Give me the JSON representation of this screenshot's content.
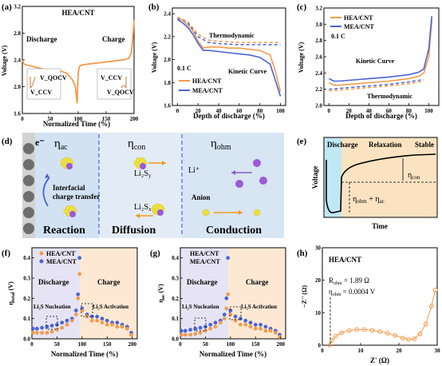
{
  "panels": {
    "a": {
      "letter": "(a)",
      "xlabel": "Normalized Time (%)",
      "ylabel": "Voltage (V)",
      "legend": "HEA/CNT",
      "discharge_label": "Discharge",
      "charge_label": "Charge",
      "inset_left_top": "V_QOCV",
      "inset_left_bottom": "V_CCV",
      "inset_right_top": "V_CCV",
      "inset_right_bottom": "V_QOCV",
      "xticks": [
        "0",
        "50",
        "100",
        "150",
        "200"
      ],
      "yticks": [
        "1.6",
        "2.0",
        "2.4",
        "2.8",
        "3.2"
      ]
    },
    "b": {
      "letter": "(b)",
      "xlabel": "Depth of discharge (%)",
      "ylabel": "Voltage (V)",
      "rate": "0.1 C",
      "thermo_label": "Thermodynamic",
      "kinetic_label": "Kinetic Curve",
      "xticks": [
        "0",
        "20",
        "40",
        "60",
        "80",
        "100"
      ],
      "yticks": [
        "1.6",
        "1.8",
        "2.0",
        "2.2",
        "2.4"
      ]
    },
    "c": {
      "letter": "(c)",
      "xlabel": "Depth of discharge (%)",
      "ylabel": "Voltage (V)",
      "rate": "0.1 C",
      "thermo_label": "Thermodynamic",
      "kinetic_label": "Kinetic Curve",
      "xticks": [
        "0",
        "20",
        "40",
        "60",
        "80",
        "100"
      ],
      "yticks": [
        "2.0",
        "2.2",
        "2.4",
        "2.6",
        "2.8",
        "3.0",
        "3.2"
      ]
    },
    "d": {
      "letter": "(d)",
      "electron": "e⁻",
      "eta_ac": "η",
      "eta_ac_sub": "ac",
      "eta_con": "η",
      "eta_con_sub": "con",
      "eta_ohm": "η",
      "eta_ohm_sub": "ohm",
      "interfacial": "Interfacial",
      "charge_transfer": "charge transfer",
      "li2sy": "Li₂S",
      "li2sy_sub": "y",
      "li2sx": "Li₂S",
      "li2sx_sub": "x",
      "li_ion": "Li⁺",
      "anion": "Anion",
      "reaction": "Reaction",
      "diffusion": "Diffusion",
      "conduction": "Conduction"
    },
    "e": {
      "letter": "(e)",
      "discharge": "Discharge",
      "relaxation": "Relaxation",
      "stable": "Stable",
      "eta_con": "η",
      "eta_con_sub": "con",
      "eta_sum": "η",
      "eta_sum_sub1": "ohm",
      "eta_sum_mid": " + η",
      "eta_sum_sub2": "ac",
      "xlabel": "Time",
      "ylabel": "Voltage"
    },
    "f": {
      "letter": "(f)",
      "xlabel": "Normalized Time (%)",
      "ylabel": "η",
      "ylabel_sub": "total",
      "ylabel_unit": " (V)",
      "discharge": "Discharge",
      "charge": "Charge",
      "nucleation": "Li₂S Nucleation",
      "activation": "Li₂S Activation",
      "xticks": [
        "0",
        "50",
        "100",
        "150",
        "200"
      ],
      "yticks": [
        "0.0",
        "0.1",
        "0.2",
        "0.3",
        "0.4"
      ]
    },
    "g": {
      "letter": "(g)",
      "xlabel": "Normalized Time (%)",
      "ylabel": "η",
      "ylabel_sub": "ac",
      "ylabel_unit": " (V)",
      "discharge": "Discharge",
      "charge": "Charge",
      "nucleation": "Li₂S Nucleation",
      "activation": "Li₂S Activation",
      "xticks": [
        "0",
        "50",
        "100",
        "150",
        "200"
      ],
      "yticks": [
        "0.0",
        "0.1",
        "0.2",
        "0.3",
        "0.4"
      ]
    },
    "h": {
      "letter": "(h)",
      "title": "HEA/CNT",
      "r_ohm": "R",
      "r_ohm_sub": "ohm",
      "r_ohm_val": " = 1.89 Ω",
      "eta_ohm": "η",
      "eta_ohm_sub": "ohm",
      "eta_ohm_val": " = 0.0004 V",
      "xlabel": "Z' (Ω)",
      "ylabel": "−Z'' (Ω)",
      "xticks": [
        "0",
        "10",
        "20",
        "30"
      ],
      "yticks": [
        "0",
        "10",
        "20",
        "30"
      ]
    }
  },
  "colors": {
    "hea": "#f39a4c",
    "mea": "#4a63d6",
    "diffusion_bg": "#dde9f5",
    "reaction_bg": "#d3e2f2",
    "relax_bg": "#fbe3c2",
    "discharge_bg": "#bfe8f4",
    "shade_charge": "#fde9d3",
    "shade_discharge": "#e6e4f4"
  },
  "chart_data": [
    {
      "panel": "a",
      "type": "line",
      "series": [
        {
          "name": "HEA/CNT",
          "x": [
            0,
            2,
            5,
            10,
            20,
            30,
            40,
            50,
            60,
            70,
            80,
            90,
            95,
            98,
            100,
            102,
            105,
            110,
            120,
            130,
            140,
            150,
            160,
            170,
            180,
            190,
            195,
            198,
            200
          ],
          "y": [
            2.4,
            2.35,
            2.33,
            2.32,
            2.3,
            2.28,
            2.26,
            2.25,
            2.24,
            2.23,
            2.2,
            2.1,
            2.0,
            1.75,
            2.2,
            2.3,
            2.32,
            2.33,
            2.34,
            2.35,
            2.36,
            2.37,
            2.38,
            2.39,
            2.4,
            2.42,
            2.5,
            2.75,
            3.0
          ]
        }
      ],
      "xlim": [
        0,
        200
      ],
      "ylim": [
        1.6,
        3.2
      ]
    },
    {
      "panel": "b",
      "type": "line",
      "series": [
        {
          "name": "HEA/CNT",
          "x": [
            0,
            5,
            10,
            15,
            20,
            25,
            30,
            40,
            50,
            60,
            70,
            80,
            90,
            95,
            100
          ],
          "y": [
            2.37,
            2.34,
            2.3,
            2.25,
            2.16,
            2.1,
            2.11,
            2.11,
            2.1,
            2.1,
            2.09,
            2.08,
            2.04,
            1.9,
            1.72
          ]
        },
        {
          "name": "MEA/CNT",
          "x": [
            0,
            5,
            10,
            15,
            20,
            25,
            30,
            40,
            50,
            60,
            70,
            80,
            90,
            95,
            100
          ],
          "y": [
            2.35,
            2.32,
            2.28,
            2.22,
            2.14,
            2.08,
            2.08,
            2.07,
            2.06,
            2.05,
            2.04,
            2.02,
            1.96,
            1.82,
            1.68
          ]
        },
        {
          "name": "HEA/CNT thermodynamic",
          "x": [
            0,
            10,
            20,
            30,
            40,
            60,
            80,
            100
          ],
          "y": [
            2.37,
            2.33,
            2.22,
            2.17,
            2.16,
            2.15,
            2.15,
            2.15
          ]
        },
        {
          "name": "MEA/CNT thermodynamic",
          "x": [
            0,
            10,
            20,
            30,
            40,
            60,
            80,
            100
          ],
          "y": [
            2.36,
            2.32,
            2.2,
            2.15,
            2.14,
            2.13,
            2.13,
            2.13
          ]
        }
      ],
      "xlim": [
        -5,
        105
      ],
      "ylim": [
        1.6,
        2.45
      ]
    },
    {
      "panel": "c",
      "type": "line",
      "series": [
        {
          "name": "HEA/CNT",
          "x": [
            0,
            5,
            10,
            20,
            40,
            60,
            80,
            90,
            95,
            100,
            103
          ],
          "y": [
            2.28,
            2.25,
            2.25,
            2.26,
            2.28,
            2.3,
            2.33,
            2.36,
            2.4,
            2.6,
            3.05
          ]
        },
        {
          "name": "MEA/CNT",
          "x": [
            0,
            5,
            10,
            20,
            40,
            60,
            80,
            90,
            95,
            100,
            103
          ],
          "y": [
            2.33,
            2.3,
            2.3,
            2.31,
            2.33,
            2.35,
            2.38,
            2.41,
            2.45,
            2.7,
            3.1
          ]
        },
        {
          "name": "HEA/CNT thermodynamic",
          "x": [
            0,
            20,
            40,
            60,
            80,
            95
          ],
          "y": [
            2.18,
            2.2,
            2.22,
            2.24,
            2.27,
            2.3
          ]
        },
        {
          "name": "MEA/CNT thermodynamic",
          "x": [
            0,
            20,
            40,
            60,
            80,
            95
          ],
          "y": [
            2.2,
            2.22,
            2.24,
            2.26,
            2.29,
            2.32
          ]
        }
      ],
      "xlim": [
        -5,
        110
      ],
      "ylim": [
        2.0,
        3.2
      ]
    },
    {
      "panel": "f",
      "type": "scatter",
      "series": [
        {
          "name": "HEA/CNT",
          "x": [
            2,
            10,
            20,
            30,
            40,
            50,
            60,
            70,
            80,
            88,
            92,
            95,
            100,
            110,
            120,
            130,
            140,
            150,
            160,
            170,
            180,
            190,
            198
          ],
          "y": [
            0.03,
            0.03,
            0.03,
            0.03,
            0.035,
            0.045,
            0.055,
            0.07,
            0.09,
            0.12,
            0.2,
            0.32,
            0.14,
            0.11,
            0.09,
            0.09,
            0.08,
            0.07,
            0.07,
            0.06,
            0.06,
            0.05,
            0.02
          ]
        },
        {
          "name": "MEA/CNT",
          "x": [
            2,
            10,
            20,
            30,
            40,
            50,
            60,
            70,
            80,
            88,
            92,
            95,
            100,
            110,
            120,
            130,
            140,
            150,
            160,
            170,
            180,
            190,
            198
          ],
          "y": [
            0.05,
            0.05,
            0.055,
            0.06,
            0.065,
            0.07,
            0.08,
            0.09,
            0.1,
            0.14,
            0.22,
            0.4,
            0.15,
            0.12,
            0.11,
            0.11,
            0.1,
            0.09,
            0.08,
            0.08,
            0.07,
            0.06,
            0.03
          ]
        }
      ],
      "xlim": [
        0,
        210
      ],
      "ylim": [
        0,
        0.45
      ]
    },
    {
      "panel": "g",
      "type": "scatter",
      "series": [
        {
          "name": "HEA/CNT",
          "x": [
            2,
            10,
            20,
            30,
            40,
            50,
            60,
            70,
            80,
            88,
            92,
            95,
            100,
            110,
            120,
            130,
            140,
            150,
            160,
            170,
            180,
            190,
            198
          ],
          "y": [
            0.02,
            0.02,
            0.02,
            0.025,
            0.03,
            0.04,
            0.05,
            0.06,
            0.08,
            0.1,
            0.15,
            0.22,
            0.12,
            0.09,
            0.07,
            0.07,
            0.06,
            0.05,
            0.05,
            0.04,
            0.04,
            0.03,
            0.01
          ]
        },
        {
          "name": "MEA/CNT",
          "x": [
            2,
            10,
            20,
            30,
            40,
            50,
            60,
            70,
            80,
            88,
            92,
            95,
            100,
            110,
            120,
            130,
            140,
            150,
            160,
            170,
            180,
            190,
            198
          ],
          "y": [
            0.04,
            0.04,
            0.045,
            0.05,
            0.055,
            0.06,
            0.07,
            0.08,
            0.09,
            0.12,
            0.2,
            0.4,
            0.14,
            0.11,
            0.1,
            0.09,
            0.08,
            0.07,
            0.07,
            0.06,
            0.05,
            0.04,
            0.02
          ]
        }
      ],
      "xlim": [
        0,
        210
      ],
      "ylim": [
        0,
        0.45
      ]
    },
    {
      "panel": "h",
      "type": "scatter",
      "series": [
        {
          "name": "HEA/CNT",
          "x": [
            1.89,
            2.5,
            3.5,
            5,
            7,
            9,
            11,
            13,
            15,
            17,
            19,
            21,
            22.5,
            24,
            25.5,
            27,
            28.5,
            29.5
          ],
          "y": [
            0,
            1.5,
            2.8,
            3.8,
            4.5,
            4.8,
            4.8,
            4.6,
            4.2,
            3.7,
            3.0,
            2.2,
            1.8,
            2.0,
            3.5,
            6.5,
            12,
            17
          ]
        }
      ],
      "xlim": [
        0,
        30
      ],
      "ylim": [
        0,
        30
      ]
    }
  ]
}
